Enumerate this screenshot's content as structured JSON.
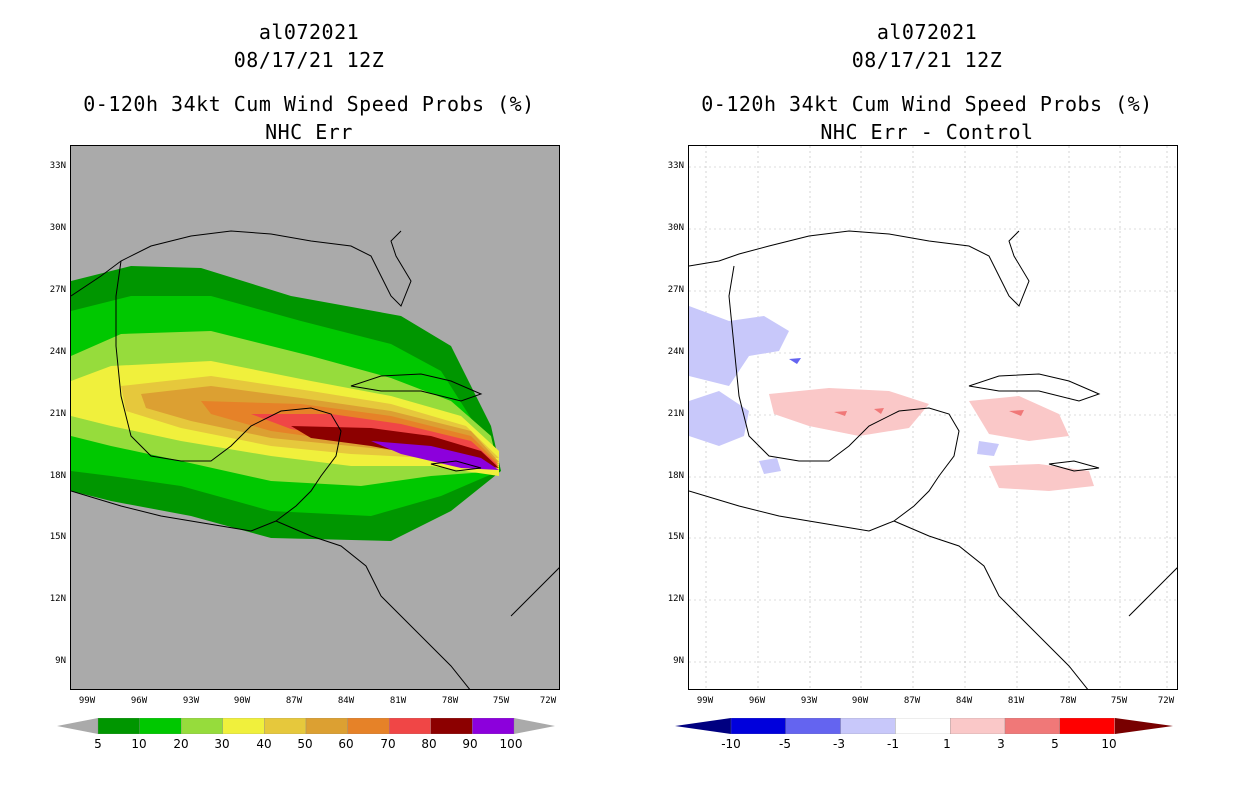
{
  "left": {
    "storm_id": "al072021",
    "datetime": "08/17/21 12Z",
    "product": "0-120h 34kt Cum Wind Speed Probs (%)",
    "subtitle": "NHC Err",
    "colorbar_labels": [
      "5",
      "10",
      "20",
      "30",
      "40",
      "50",
      "60",
      "70",
      "80",
      "90",
      "100"
    ],
    "colorbar_colors": [
      "#009600",
      "#00c800",
      "#96dc3c",
      "#f0f03c",
      "#e6c83c",
      "#dca032",
      "#e68228",
      "#f04646",
      "#8c0000",
      "#8c00dc"
    ]
  },
  "right": {
    "storm_id": "al072021",
    "datetime": "08/17/21 12Z",
    "product": "0-120h 34kt Cum Wind Speed Probs (%)",
    "subtitle": "NHC Err - Control",
    "colorbar_labels": [
      "-10",
      "-5",
      "-3",
      "-1",
      "1",
      "3",
      "5",
      "10"
    ],
    "colorbar_colors": [
      "#0000dc",
      "#6464f0",
      "#c8c8fa",
      "#ffffff",
      "#fac8c8",
      "#f07878",
      "#ff0000"
    ]
  },
  "lat_labels": [
    "33N",
    "30N",
    "27N",
    "24N",
    "21N",
    "18N",
    "15N",
    "12N",
    "9N"
  ],
  "lon_labels": [
    "99W",
    "96W",
    "93W",
    "90W",
    "87W",
    "84W",
    "81W",
    "78W",
    "75W",
    "72W"
  ],
  "colors": {
    "map_bg": "#aaaaaa",
    "land_line": "#000000",
    "grid": "#bbbbbb"
  }
}
